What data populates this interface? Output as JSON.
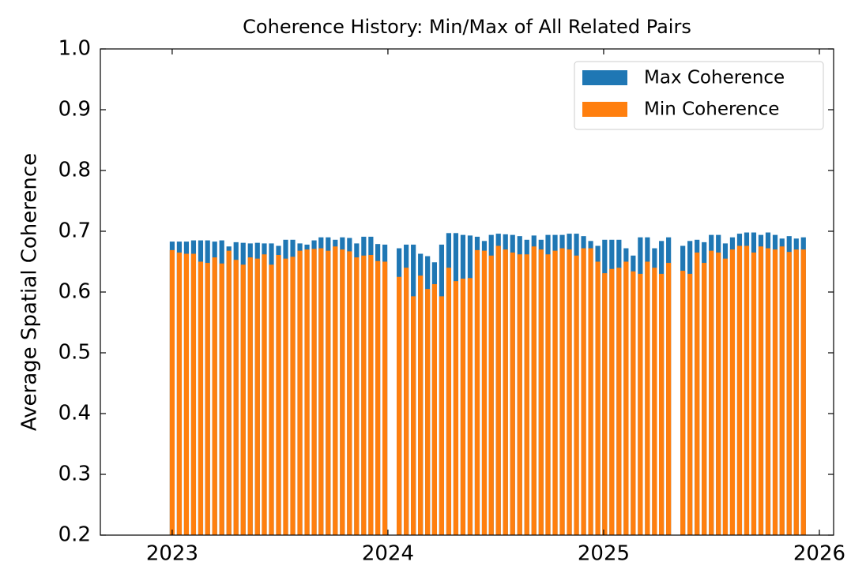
{
  "chart_data": {
    "type": "bar",
    "title": "Coherence History: Min/Max of All Related Pairs",
    "y_label": "Average Spatial Coherence",
    "x": [
      2023.0,
      2023.033,
      2023.066,
      2023.099,
      2023.132,
      2023.164,
      2023.197,
      2023.23,
      2023.263,
      2023.296,
      2023.329,
      2023.362,
      2023.395,
      2023.427,
      2023.46,
      2023.493,
      2023.526,
      2023.559,
      2023.592,
      2023.625,
      2023.658,
      2023.69,
      2023.723,
      2023.756,
      2023.789,
      2023.822,
      2023.855,
      2023.888,
      2023.921,
      2023.953,
      2023.986,
      2024.052,
      2024.085,
      2024.118,
      2024.151,
      2024.184,
      2024.216,
      2024.249,
      2024.282,
      2024.315,
      2024.348,
      2024.381,
      2024.414,
      2024.447,
      2024.479,
      2024.512,
      2024.545,
      2024.578,
      2024.611,
      2024.644,
      2024.677,
      2024.71,
      2024.742,
      2024.775,
      2024.808,
      2024.841,
      2024.874,
      2024.907,
      2024.94,
      2024.973,
      2025.005,
      2025.038,
      2025.071,
      2025.104,
      2025.137,
      2025.17,
      2025.203,
      2025.236,
      2025.268,
      2025.301,
      2025.367,
      2025.4,
      2025.433,
      2025.466,
      2025.499,
      2025.532,
      2025.564,
      2025.597,
      2025.63,
      2025.663,
      2025.696,
      2025.729,
      2025.762,
      2025.795,
      2025.827,
      2025.86,
      2025.893,
      2025.926
    ],
    "series": [
      {
        "name": "Max Coherence",
        "color": "#1f77b4",
        "values": [
          0.683,
          0.683,
          0.683,
          0.685,
          0.685,
          0.685,
          0.683,
          0.685,
          0.675,
          0.682,
          0.681,
          0.68,
          0.681,
          0.68,
          0.68,
          0.676,
          0.686,
          0.686,
          0.68,
          0.678,
          0.685,
          0.69,
          0.69,
          0.686,
          0.69,
          0.689,
          0.68,
          0.691,
          0.691,
          0.679,
          0.678,
          0.672,
          0.678,
          0.678,
          0.663,
          0.659,
          0.649,
          0.678,
          0.697,
          0.697,
          0.694,
          0.693,
          0.691,
          0.684,
          0.694,
          0.696,
          0.695,
          0.694,
          0.692,
          0.686,
          0.693,
          0.686,
          0.694,
          0.694,
          0.694,
          0.696,
          0.696,
          0.692,
          0.684,
          0.676,
          0.686,
          0.686,
          0.686,
          0.672,
          0.66,
          0.69,
          0.69,
          0.672,
          0.684,
          0.69,
          0.676,
          0.684,
          0.686,
          0.682,
          0.694,
          0.694,
          0.68,
          0.69,
          0.696,
          0.698,
          0.698,
          0.694,
          0.698,
          0.694,
          0.688,
          0.692,
          0.688,
          0.69
        ]
      },
      {
        "name": "Min Coherence",
        "color": "#ff7f0e",
        "values": [
          0.669,
          0.665,
          0.663,
          0.663,
          0.65,
          0.648,
          0.657,
          0.647,
          0.668,
          0.653,
          0.645,
          0.657,
          0.655,
          0.662,
          0.645,
          0.661,
          0.655,
          0.658,
          0.668,
          0.67,
          0.671,
          0.672,
          0.668,
          0.675,
          0.67,
          0.667,
          0.657,
          0.66,
          0.661,
          0.651,
          0.65,
          0.625,
          0.64,
          0.593,
          0.627,
          0.605,
          0.613,
          0.593,
          0.64,
          0.618,
          0.622,
          0.623,
          0.669,
          0.668,
          0.66,
          0.676,
          0.67,
          0.665,
          0.662,
          0.662,
          0.675,
          0.67,
          0.662,
          0.668,
          0.672,
          0.67,
          0.66,
          0.672,
          0.672,
          0.65,
          0.631,
          0.638,
          0.64,
          0.65,
          0.634,
          0.63,
          0.65,
          0.64,
          0.63,
          0.648,
          0.635,
          0.63,
          0.665,
          0.648,
          0.668,
          0.665,
          0.655,
          0.67,
          0.676,
          0.676,
          0.665,
          0.675,
          0.672,
          0.67,
          0.675,
          0.666,
          0.67,
          0.67
        ]
      }
    ],
    "xlim": [
      2022.667,
      2026.066
    ],
    "xticks": [
      2023,
      2024,
      2025,
      2026
    ],
    "ylim": [
      0.2,
      1
    ],
    "yticks": [
      0.2,
      0.3,
      0.4,
      0.5,
      0.6,
      0.7,
      0.8,
      0.9,
      {
        "value": 1,
        "label": "1.0"
      }
    ],
    "legend": "upper right"
  }
}
